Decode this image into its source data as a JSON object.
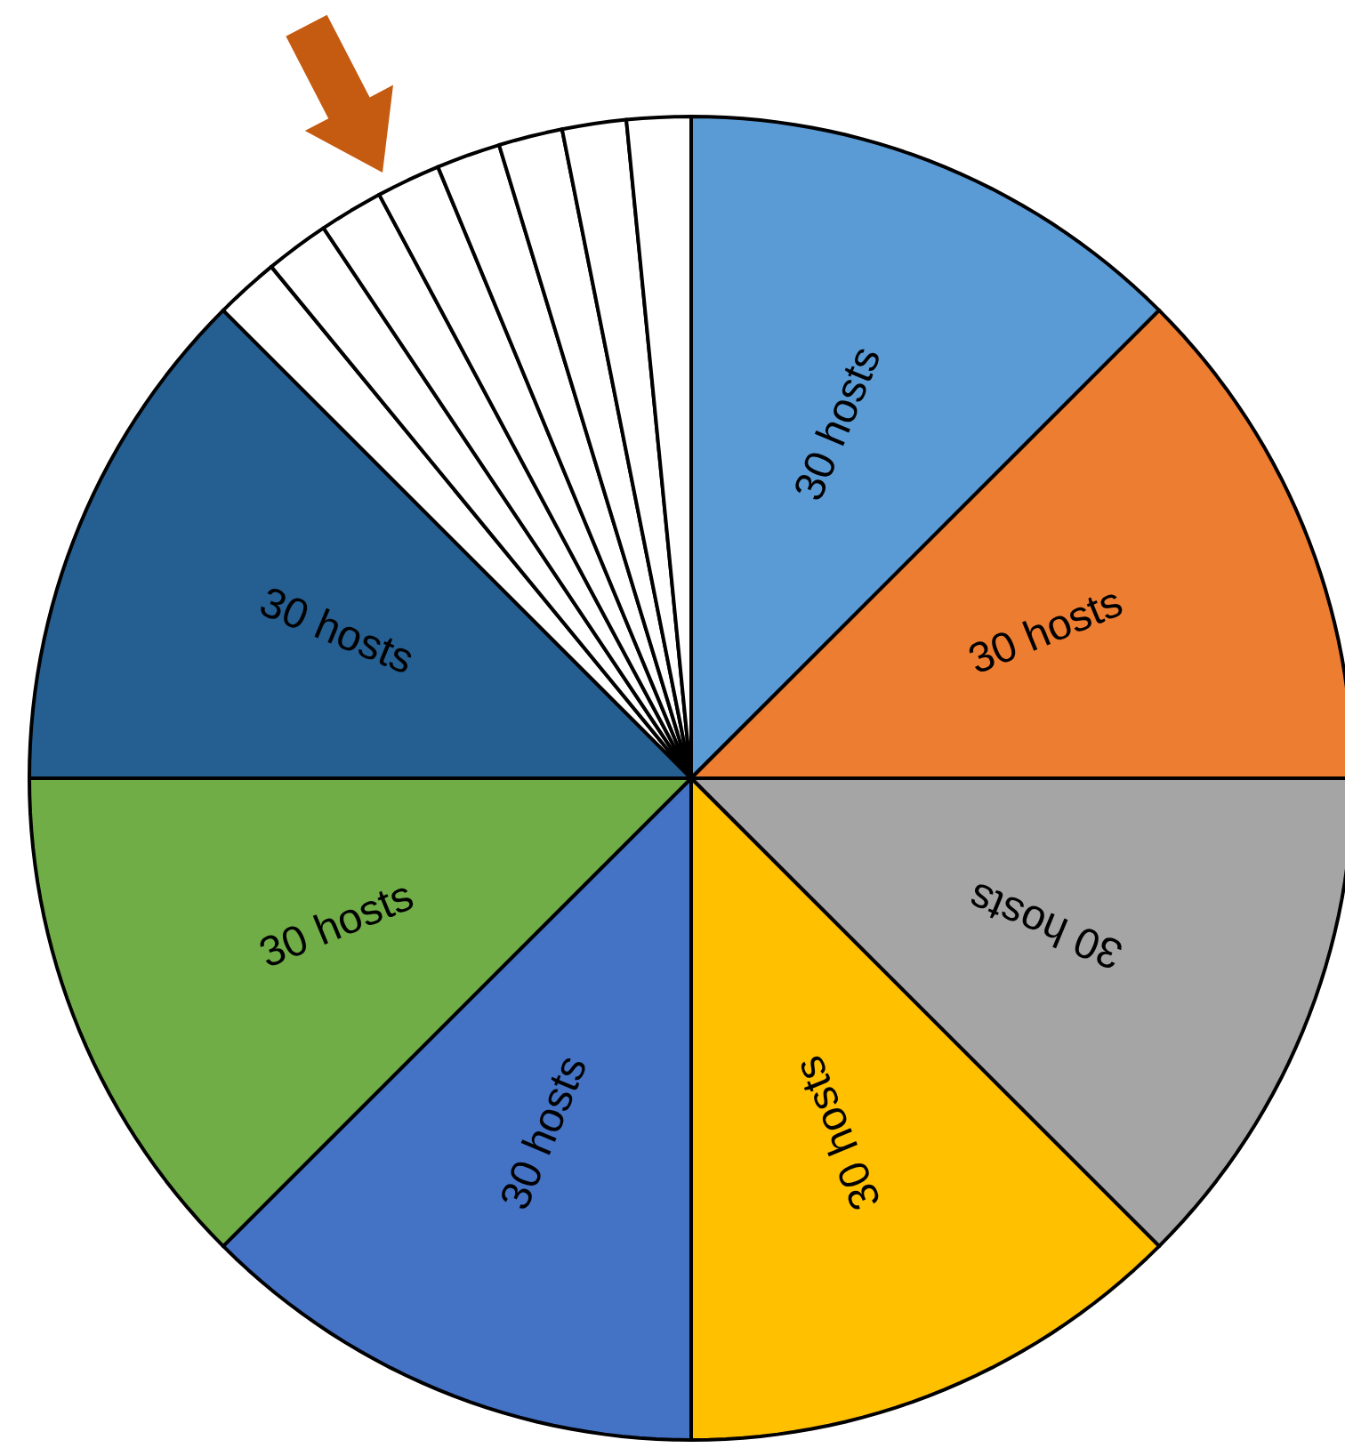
{
  "chart_data": {
    "type": "pie",
    "categories": [
      "30 hosts",
      "30 hosts",
      "30 hosts",
      "30 hosts",
      "30 hosts",
      "30 hosts",
      "30 hosts",
      null,
      null,
      null,
      null,
      null,
      null,
      null,
      null
    ],
    "values": [
      12.5,
      12.5,
      12.5,
      12.5,
      12.5,
      12.5,
      12.5,
      1.5625,
      1.5625,
      1.5625,
      1.5625,
      1.5625,
      1.5625,
      1.5625,
      1.5625
    ],
    "colors": [
      "#5b9bd5",
      "#ed7d31",
      "#a5a5a5",
      "#ffc000",
      "#4472c4",
      "#70ad47",
      "#255e91",
      "#ffffff",
      "#ffffff",
      "#ffffff",
      "#ffffff",
      "#ffffff",
      "#ffffff",
      "#ffffff",
      "#ffffff"
    ]
  }
}
